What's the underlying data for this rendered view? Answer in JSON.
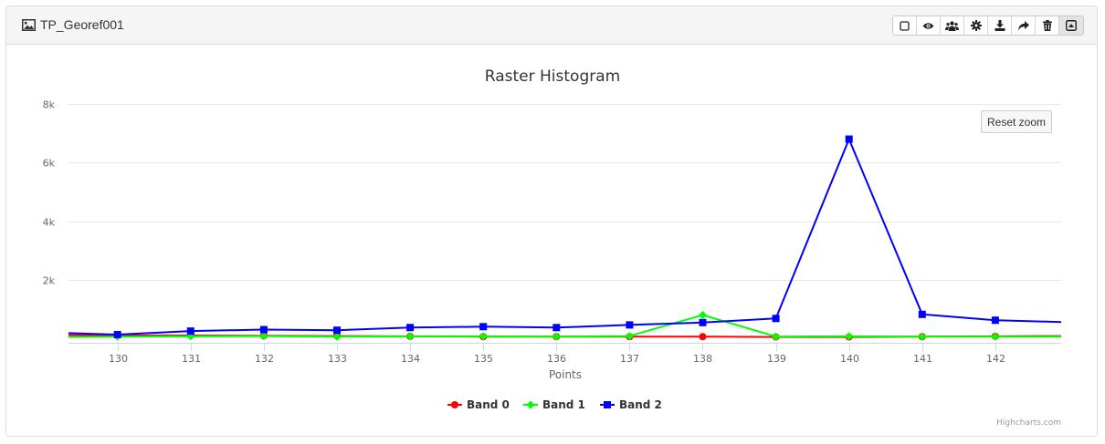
{
  "panel": {
    "title": "TP_Georef001",
    "icon": "image-icon"
  },
  "toolbar": [
    {
      "name": "square-icon",
      "label": ""
    },
    {
      "name": "eye-icon",
      "label": ""
    },
    {
      "name": "users-icon",
      "label": ""
    },
    {
      "name": "gear-icon",
      "label": ""
    },
    {
      "name": "download-icon",
      "label": ""
    },
    {
      "name": "share-icon",
      "label": ""
    },
    {
      "name": "trash-icon",
      "label": ""
    },
    {
      "name": "caret-square-up-icon",
      "label": ""
    }
  ],
  "reset_zoom_label": "Reset zoom",
  "credits": "Highcharts.com",
  "chart_data": {
    "type": "line",
    "title": "Raster Histogram",
    "xlabel": "Points",
    "ylabel": "",
    "x": [
      130,
      131,
      132,
      133,
      134,
      135,
      136,
      137,
      138,
      139,
      140,
      141,
      142
    ],
    "xlim": [
      129.33,
      142.9
    ],
    "ylim": [
      -150,
      8000
    ],
    "yticks": [
      2000,
      4000,
      6000,
      8000
    ],
    "ytick_labels": [
      "2k",
      "4k",
      "6k",
      "8k"
    ],
    "grid": true,
    "legend_position": "bottom-center",
    "series": [
      {
        "name": "Band 0",
        "color": "#ff0000",
        "marker": "circle",
        "values": [
          100,
          100,
          90,
          80,
          70,
          60,
          60,
          60,
          60,
          50,
          50,
          60,
          70
        ],
        "start_value": 110,
        "end_value": 80
      },
      {
        "name": "Band 1",
        "color": "#00ff00",
        "marker": "diamond",
        "values": [
          60,
          70,
          80,
          60,
          70,
          70,
          60,
          80,
          800,
          60,
          70,
          60,
          60
        ],
        "start_value": 50,
        "end_value": 60
      },
      {
        "name": "Band 2",
        "color": "#0000ff",
        "marker": "square",
        "values": [
          130,
          250,
          300,
          280,
          370,
          400,
          370,
          460,
          540,
          680,
          6800,
          820,
          620
        ],
        "start_value": 180,
        "end_value": 560
      }
    ]
  }
}
